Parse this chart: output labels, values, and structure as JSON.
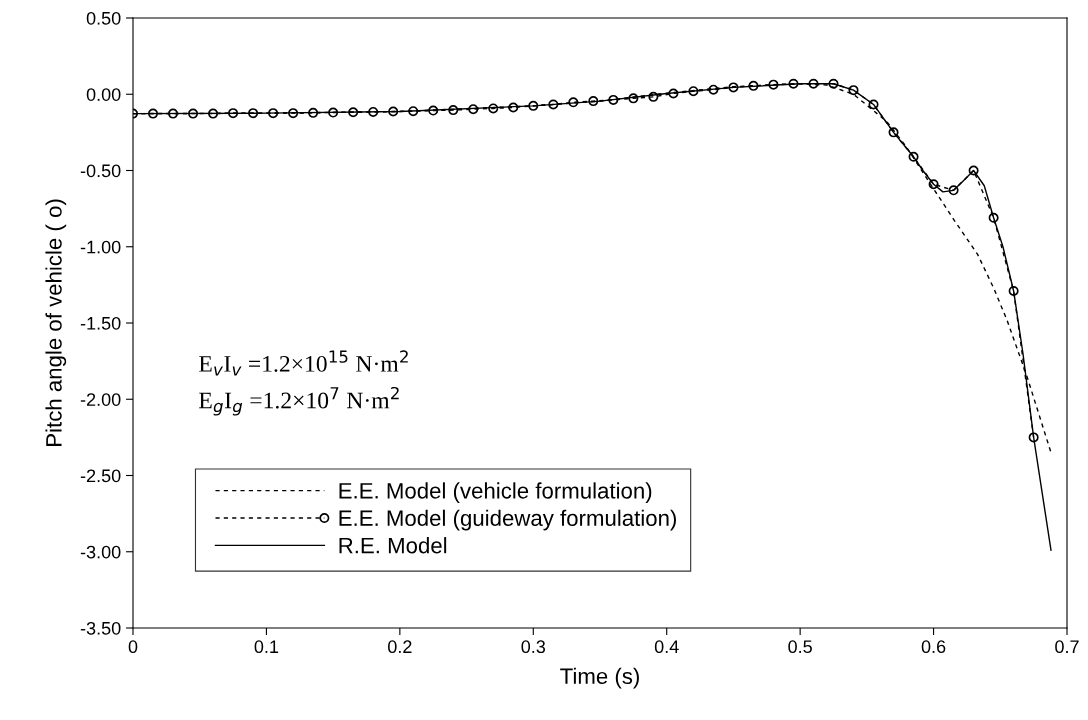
{
  "chart_data": {
    "type": "line",
    "xlabel": "Time (s)",
    "ylabel": "Pitch angle of vehicle ( o)",
    "xlim": [
      0,
      0.7
    ],
    "ylim": [
      -3.5,
      0.5
    ],
    "xticks": [
      0,
      0.1,
      0.2,
      0.3,
      0.4,
      0.5,
      0.6,
      0.7
    ],
    "yticks": [
      {
        "value": 0.5,
        "label": "0.50"
      },
      {
        "value": 0,
        "label": "0.00"
      },
      {
        "value": -0.5,
        "label": "-0.50"
      },
      {
        "value": -1,
        "label": "-1.00"
      },
      {
        "value": -1.5,
        "label": "-1.50"
      },
      {
        "value": -2,
        "label": "-2.00"
      },
      {
        "value": -2.5,
        "label": "-2.50"
      },
      {
        "value": -3,
        "label": "-3.00"
      },
      {
        "value": -3.5,
        "label": "-3.50"
      }
    ],
    "grid": false,
    "legend": "bottom left",
    "annotations": [
      "E$_{v}$I$_{v}$ =1.2×10$^{15}$ N·m$^{2}$",
      "E$_{g}$I$_{g}$ =1.2×10$^{7}$ N·m$^{2}$"
    ],
    "series": [
      {
        "name": "E.E. Model (vehicle formulation)",
        "color": "#000000",
        "line_style": "dashed",
        "marker": "none",
        "x": [
          0,
          0.1,
          0.2,
          0.3,
          0.35,
          0.4,
          0.45,
          0.5,
          0.52,
          0.54,
          0.565,
          0.58,
          0.6,
          0.615,
          0.633,
          0.645,
          0.655,
          0.67,
          0.688
        ],
        "values": [
          -0.127,
          -0.124,
          -0.113,
          -0.076,
          -0.045,
          0.007,
          0.05,
          0.069,
          0.06,
          0.0,
          -0.18,
          -0.35,
          -0.62,
          -0.82,
          -1.05,
          -1.27,
          -1.48,
          -1.85,
          -2.35
        ]
      },
      {
        "name": "E.E. Model (guideway formulation)",
        "color": "#000000",
        "line_style": "dashed",
        "marker": "circle",
        "x": [
          0,
          0.015,
          0.03,
          0.045,
          0.06,
          0.075,
          0.09,
          0.105,
          0.12,
          0.135,
          0.15,
          0.165,
          0.18,
          0.195,
          0.21,
          0.225,
          0.24,
          0.255,
          0.27,
          0.285,
          0.3,
          0.315,
          0.33,
          0.345,
          0.36,
          0.375,
          0.39,
          0.405,
          0.42,
          0.435,
          0.45,
          0.465,
          0.48,
          0.495,
          0.51,
          0.525,
          0.54,
          0.555,
          0.57,
          0.585,
          0.6,
          0.615,
          0.63,
          0.645,
          0.66,
          0.675
        ],
        "values": [
          -0.127,
          -0.127,
          -0.127,
          -0.127,
          -0.127,
          -0.124,
          -0.124,
          -0.124,
          -0.124,
          -0.122,
          -0.12,
          -0.118,
          -0.116,
          -0.113,
          -0.111,
          -0.107,
          -0.104,
          -0.098,
          -0.093,
          -0.087,
          -0.076,
          -0.067,
          -0.053,
          -0.045,
          -0.037,
          -0.027,
          -0.017,
          0.005,
          0.02,
          0.03,
          0.045,
          0.055,
          0.063,
          0.069,
          0.069,
          0.069,
          0.027,
          -0.067,
          -0.25,
          -0.41,
          -0.59,
          -0.63,
          -0.5,
          -0.81,
          -1.29,
          -2.25
        ]
      },
      {
        "name": "R.E. Model",
        "color": "#000000",
        "line_style": "solid",
        "marker": "none",
        "x": [
          0,
          0.1,
          0.2,
          0.3,
          0.35,
          0.4,
          0.45,
          0.5,
          0.525,
          0.54,
          0.555,
          0.57,
          0.585,
          0.592,
          0.6,
          0.607,
          0.615,
          0.622,
          0.63,
          0.638,
          0.645,
          0.652,
          0.66,
          0.667,
          0.675,
          0.688
        ],
        "values": [
          -0.127,
          -0.124,
          -0.113,
          -0.076,
          -0.045,
          0.005,
          0.045,
          0.069,
          0.069,
          0.027,
          -0.067,
          -0.25,
          -0.41,
          -0.5,
          -0.59,
          -0.64,
          -0.63,
          -0.57,
          -0.5,
          -0.6,
          -0.81,
          -1.0,
          -1.29,
          -1.7,
          -2.25,
          -2.99
        ]
      }
    ]
  }
}
